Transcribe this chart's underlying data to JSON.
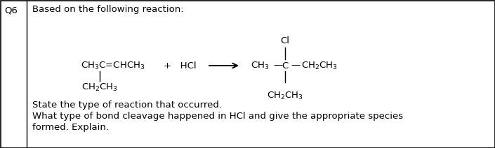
{
  "bg_color": "#ffffff",
  "border_color": "#000000",
  "q_label": "Q6",
  "title_text": "Based on the following reaction:",
  "line1": "State the type of reaction that occurred.",
  "line2": "What type of bond cleavage happened in HCl and give the appropriate species",
  "line3": "formed. Explain.",
  "font_family": "sans-serif",
  "font_size": 9.5,
  "fig_width": 7.05,
  "fig_height": 2.12,
  "dpi": 100
}
